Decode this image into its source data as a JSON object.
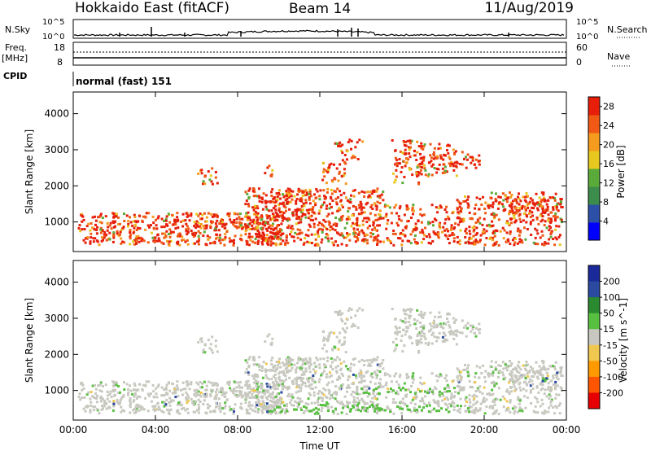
{
  "header": {
    "title": "Hokkaido East (fitACF)",
    "beam": "Beam 14",
    "date": "11/Aug/2019"
  },
  "noise_panel": {
    "left_label": "N.Sky",
    "right_label": "N.Search",
    "left_ticks": [
      "10^5",
      "10^0"
    ],
    "right_ticks": [
      "10^5",
      "10^0"
    ]
  },
  "freq_panel": {
    "left_label_line1": "Freq.",
    "left_label_line2": "[MHz]",
    "left_ticks": [
      "18",
      "8"
    ],
    "right_label": "Nave",
    "right_ticks": [
      "60",
      "0"
    ]
  },
  "cpid_panel": {
    "label": "CPID",
    "mode": "normal (fast) 151"
  },
  "colors": {
    "power_scale": [
      "#0000ff",
      "#2c4fa8",
      "#3c8c4c",
      "#5aaa3a",
      "#e6c81e",
      "#f59b1e",
      "#f05a14",
      "#e61e0a"
    ],
    "velocity_scale": [
      "#e60000",
      "#ff5500",
      "#ff9900",
      "#f0c850",
      "#c8c8c0",
      "#58c040",
      "#2a8a30",
      "#2a4aa0",
      "#1a2a9a"
    ]
  },
  "chart_data": [
    {
      "type": "heatmap",
      "title": "",
      "xlabel": "",
      "ylabel": "Slant Range [km]",
      "xlim": [
        "00:00",
        "24:00"
      ],
      "ylim": [
        180,
        4600
      ],
      "x_ticks": [
        "00:00",
        "04:00",
        "08:00",
        "12:00",
        "16:00",
        "20:00",
        "00:00"
      ],
      "y_ticks": [
        1000,
        2000,
        3000,
        4000
      ],
      "colorbar": {
        "label": "Power [dB]",
        "ticks": [
          4,
          8,
          12,
          16,
          20,
          24,
          28
        ],
        "range": [
          0,
          30
        ]
      }
    },
    {
      "type": "heatmap",
      "title": "",
      "xlabel": "Time UT",
      "ylabel": "Slant Range [km]",
      "xlim": [
        "00:00",
        "24:00"
      ],
      "ylim": [
        180,
        4600
      ],
      "x_ticks": [
        "00:00",
        "04:00",
        "08:00",
        "12:00",
        "16:00",
        "20:00",
        "00:00"
      ],
      "y_ticks": [
        1000,
        2000,
        3000,
        4000
      ],
      "colorbar": {
        "label": "Velocity [m s^-1]",
        "ticks": [
          200,
          100,
          50,
          15,
          -15,
          -50,
          -100,
          -200
        ],
        "range": [
          -250,
          250
        ]
      }
    }
  ]
}
